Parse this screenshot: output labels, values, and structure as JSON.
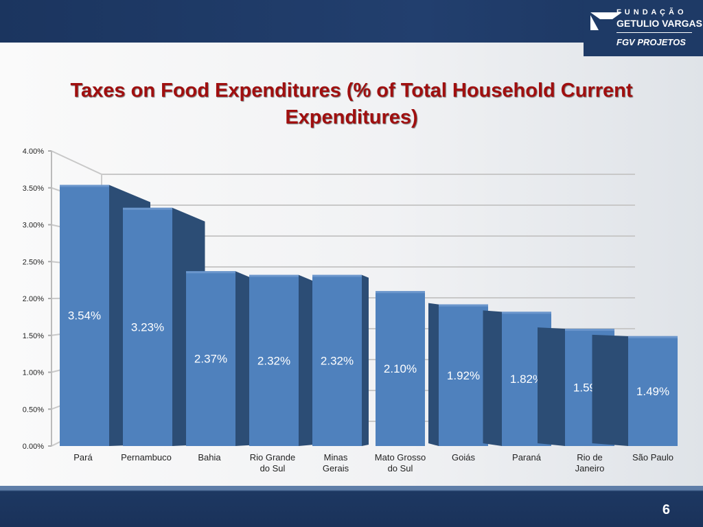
{
  "logo": {
    "line1": "F U N D A Ç Ã O",
    "line2": "GETULIO VARGAS",
    "line3": "FGV PROJETOS"
  },
  "page_number": "6",
  "chart_data": {
    "type": "bar",
    "title": "Taxes on Food Expenditures (% of Total Household Current Expenditures)",
    "title_lines": [
      "Taxes on Food Expenditures (% of Total Household Current",
      "Expenditures)"
    ],
    "categories": [
      "Pará",
      "Pernambuco",
      "Bahia",
      "Rio Grande do Sul",
      "Minas Gerais",
      "Mato Grosso do Sul",
      "Goiás",
      "Paraná",
      "Rio de Janeiro",
      "São Paulo"
    ],
    "category_lines": [
      [
        "Pará"
      ],
      [
        "Pernambuco"
      ],
      [
        "Bahia"
      ],
      [
        "Rio Grande",
        "do Sul"
      ],
      [
        "Minas",
        "Gerais"
      ],
      [
        "Mato Grosso",
        "do Sul"
      ],
      [
        "Goiás"
      ],
      [
        "Paraná"
      ],
      [
        "Rio de",
        "Janeiro"
      ],
      [
        "São Paulo"
      ]
    ],
    "values": [
      3.54,
      3.23,
      2.37,
      2.32,
      2.32,
      2.1,
      1.92,
      1.82,
      1.59,
      1.49
    ],
    "data_labels": [
      "3.54%",
      "3.23%",
      "2.37%",
      "2.32%",
      "2.32%",
      "2.10%",
      "1.92%",
      "1.82%",
      "1.59%",
      "1.49%"
    ],
    "ylim": [
      0,
      4
    ],
    "yticks": [
      "0.00%",
      "0.50%",
      "1.00%",
      "1.50%",
      "2.00%",
      "2.50%",
      "3.00%",
      "3.50%",
      "4.00%"
    ],
    "grid": true,
    "style": "3d-column",
    "colors": {
      "front": "#4f81bd",
      "side": "#2c4d75",
      "label": "#ffffff"
    }
  }
}
